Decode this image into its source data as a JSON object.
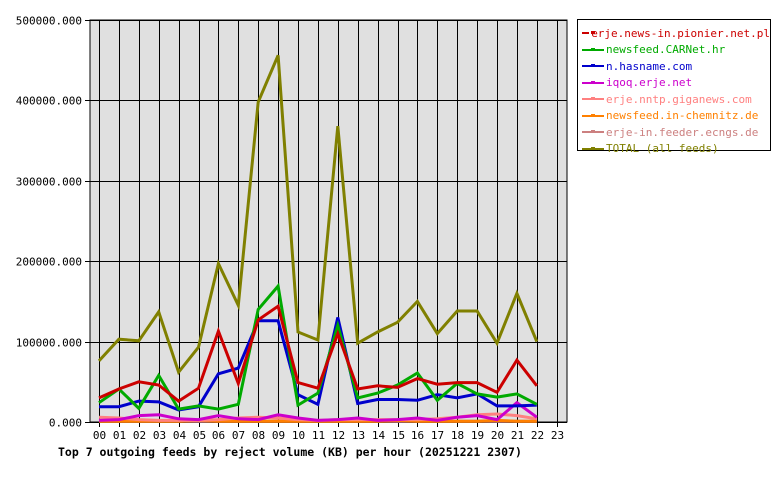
{
  "chart_data": {
    "type": "line",
    "title": "Top 7 outgoing feeds by reject volume (KB) per hour (20251221 2307)",
    "xlabel": "",
    "ylabel": "",
    "ylim": [
      0,
      500000
    ],
    "grid": true,
    "legend_position": "right",
    "y_ticks": [
      "0.000",
      "100000.000",
      "200000.000",
      "300000.000",
      "400000.000",
      "500000.000"
    ],
    "x": [
      "00",
      "01",
      "02",
      "03",
      "04",
      "05",
      "06",
      "07",
      "08",
      "09",
      "10",
      "11",
      "12",
      "13",
      "14",
      "15",
      "16",
      "17",
      "18",
      "19",
      "20",
      "21",
      "22",
      "23"
    ],
    "series": [
      {
        "name": "erje.news-in.pionier.net.pl",
        "color": "#cc0000",
        "values": [
          30000,
          41000,
          50000,
          46000,
          26000,
          42000,
          113000,
          48000,
          127000,
          144000,
          49000,
          42000,
          110000,
          41000,
          45000,
          43000,
          54000,
          47000,
          49000,
          49000,
          37000,
          77000,
          45000
        ]
      },
      {
        "name": "newsfeed.CARNet.hr",
        "color": "#00aa00",
        "values": [
          24000,
          41000,
          17000,
          58000,
          16000,
          20000,
          16000,
          22000,
          140000,
          169000,
          21000,
          36000,
          120000,
          30000,
          36000,
          46000,
          61000,
          27000,
          48000,
          35000,
          31000,
          35000,
          22000
        ]
      },
      {
        "name": "n.hasname.com",
        "color": "#0000cc",
        "values": [
          19000,
          19000,
          26000,
          25000,
          15000,
          19000,
          60000,
          67000,
          126000,
          126000,
          34000,
          22000,
          130000,
          23000,
          28000,
          28000,
          27000,
          34000,
          30000,
          35000,
          20000,
          20000,
          21000
        ]
      },
      {
        "name": "iqoq.erje.net",
        "color": "#cc00cc",
        "values": [
          2000,
          3000,
          8000,
          9000,
          4000,
          3000,
          8000,
          4000,
          3000,
          9000,
          5000,
          2000,
          3000,
          5000,
          2000,
          3000,
          5000,
          2000,
          6000,
          8000,
          3000,
          24000,
          6000
        ]
      },
      {
        "name": "erje.nntp.giganews.com",
        "color": "#ff8080",
        "values": [
          6000,
          5000,
          3000,
          2000,
          2000,
          2000,
          3000,
          5000,
          6000,
          5000,
          3000,
          2000,
          3000,
          3000,
          3000,
          3000,
          3000,
          4000,
          6000,
          9000,
          10000,
          8000,
          4000
        ]
      },
      {
        "name": "newsfeed.in-chemnitz.de",
        "color": "#ff8000",
        "values": [
          1000,
          1000,
          1000,
          1000,
          1000,
          2000,
          1000,
          1000,
          1000,
          1000,
          1000,
          1000,
          1000,
          1000,
          1000,
          2000,
          1000,
          1000,
          1000,
          1000,
          2000,
          1000,
          1000
        ]
      },
      {
        "name": "erje-in.feeder.ecngs.de",
        "color": "#cc8080",
        "values": [
          1000,
          1000,
          1000,
          1000,
          1000,
          1000,
          1000,
          1000,
          1000,
          1000,
          1000,
          1000,
          1000,
          1000,
          1000,
          1000,
          1000,
          1000,
          1000,
          1000,
          1000,
          1000,
          1000
        ]
      },
      {
        "name": "TOTAL (all feeds)",
        "color": "#808000",
        "values": [
          76000,
          103000,
          101000,
          137000,
          62000,
          93000,
          197000,
          145000,
          398000,
          456000,
          112000,
          102000,
          368000,
          98000,
          112000,
          124000,
          150000,
          110000,
          138000,
          138000,
          98000,
          160000,
          100000
        ]
      }
    ]
  },
  "legend": {
    "items": [
      {
        "label": "erje.news-in.pionier.net.pl",
        "color": "#cc0000"
      },
      {
        "label": "newsfeed.CARNet.hr",
        "color": "#00aa00"
      },
      {
        "label": "n.hasname.com",
        "color": "#0000cc"
      },
      {
        "label": "iqoq.erje.net",
        "color": "#cc00cc"
      },
      {
        "label": "erje.nntp.giganews.com",
        "color": "#ff8080"
      },
      {
        "label": "newsfeed.in-chemnitz.de",
        "color": "#ff8000"
      },
      {
        "label": "erje-in.feeder.ecngs.de",
        "color": "#cc8080"
      },
      {
        "label": "TOTAL (all feeds)",
        "color": "#808000"
      }
    ]
  },
  "style": {
    "plot_bg": "#e0e0e0",
    "grid_color": "#000000"
  }
}
